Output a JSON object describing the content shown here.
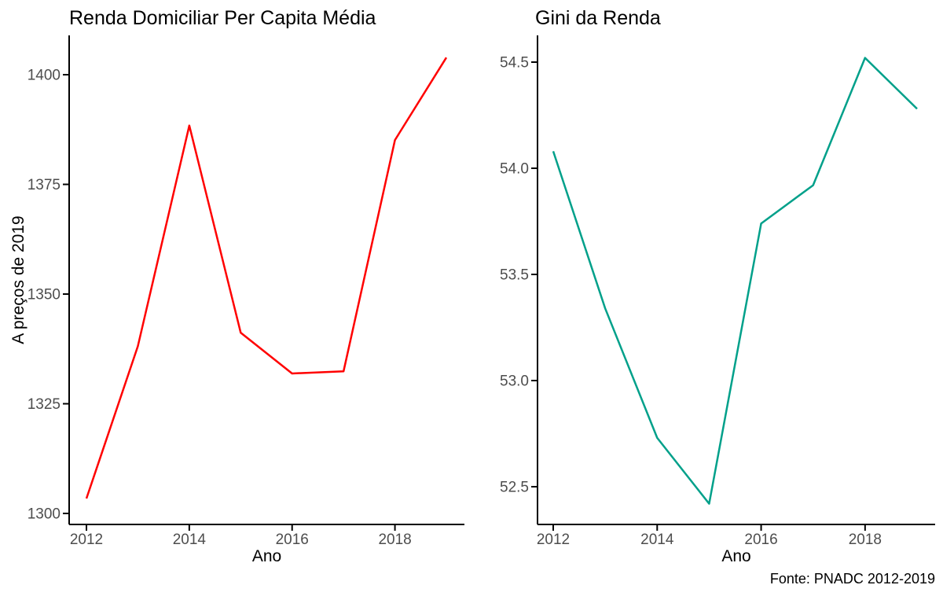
{
  "page": {
    "background": "#ffffff",
    "footer": "Fonte: PNADC 2012-2019"
  },
  "colors": {
    "axis": "#000000",
    "tick_label": "#4d4d4d",
    "title_text": "#000000",
    "renda_line": "#ff0000",
    "gini_line": "#00a08a"
  },
  "chart_data": [
    {
      "type": "line",
      "title": "Renda Domiciliar Per Capita Média",
      "xlabel": "Ano",
      "ylabel": "A preços de 2019",
      "x": [
        2012,
        2013,
        2014,
        2015,
        2016,
        2017,
        2018,
        2019
      ],
      "values": [
        1303.4,
        1338.1,
        1388.4,
        1341.2,
        1331.9,
        1332.4,
        1385.1,
        1403.9
      ],
      "color": "#ff0000",
      "xticks": [
        2012,
        2014,
        2016,
        2018
      ],
      "xtick_labels": [
        "2012",
        "2014",
        "2016",
        "2018"
      ],
      "yticks": [
        1300,
        1325,
        1350,
        1375,
        1400
      ],
      "ytick_labels": [
        "1300",
        "1325",
        "1350",
        "1375",
        "1400"
      ],
      "xlim": [
        2011.65,
        2019.35
      ],
      "ylim": [
        1297.5,
        1409.0
      ],
      "grid": false,
      "legend": "none",
      "theme": "classic"
    },
    {
      "type": "line",
      "title": "Gini da Renda",
      "xlabel": "Ano",
      "ylabel": "",
      "x": [
        2012,
        2013,
        2014,
        2015,
        2016,
        2017,
        2018,
        2019
      ],
      "values": [
        54.08,
        53.34,
        52.73,
        52.42,
        53.74,
        53.92,
        54.52,
        54.28
      ],
      "color": "#00a08a",
      "xticks": [
        2012,
        2014,
        2016,
        2018
      ],
      "xtick_labels": [
        "2012",
        "2014",
        "2016",
        "2018"
      ],
      "yticks": [
        52.5,
        53.0,
        53.5,
        54.0,
        54.5
      ],
      "ytick_labels": [
        "52.5",
        "53.0",
        "53.5",
        "54.0",
        "54.5"
      ],
      "xlim": [
        2011.65,
        2019.35
      ],
      "ylim": [
        52.32,
        54.63
      ],
      "grid": false,
      "legend": "none",
      "theme": "classic"
    }
  ]
}
